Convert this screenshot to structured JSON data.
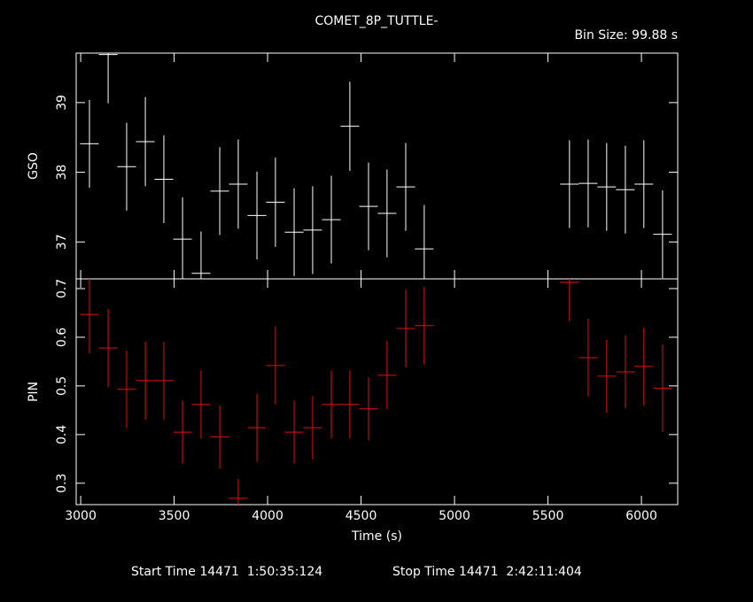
{
  "title": "COMET_8P_TUTTLE-",
  "bin_size": "Bin Size: 99.88 s",
  "footer": {
    "start": "Start Time 14471  1:50:35:124",
    "stop": "Stop Time 14471  2:42:11:404"
  },
  "chart_data": [
    {
      "type": "errorbar",
      "y_label": "GSO",
      "color": "#ffffff",
      "x": [
        3047,
        3147,
        3246,
        3346,
        3445,
        3545,
        3644,
        3744,
        3843,
        3943,
        4042,
        4142,
        4241,
        4341,
        4440,
        4540,
        4639,
        4739,
        4838,
        5615,
        5715,
        5814,
        5914,
        6013,
        6113
      ],
      "x_errors": [
        49.94,
        49.94,
        49.94,
        49.94,
        49.94,
        49.94,
        49.94,
        49.94,
        49.94,
        49.94,
        49.94,
        49.94,
        49.94,
        49.94,
        49.94,
        49.94,
        49.94,
        49.94,
        49.94,
        49.94,
        49.94,
        49.94,
        49.94,
        49.94,
        49.94
      ],
      "values": [
        38.41,
        39.69,
        38.08,
        38.44,
        37.9,
        37.04,
        36.55,
        37.73,
        37.83,
        37.38,
        37.57,
        37.14,
        37.17,
        37.32,
        38.66,
        37.51,
        37.41,
        37.79,
        36.9,
        37.83,
        37.84,
        37.79,
        37.75,
        37.83,
        37.11
      ],
      "errors": [
        0.63,
        0.7,
        0.63,
        0.64,
        0.63,
        0.6,
        0.6,
        0.63,
        0.64,
        0.63,
        0.64,
        0.63,
        0.63,
        0.63,
        0.64,
        0.63,
        0.63,
        0.63,
        0.63,
        0.63,
        0.63,
        0.63,
        0.63,
        0.63,
        0.63
      ],
      "ylim": [
        36.47,
        39.71
      ],
      "yticks": [
        37,
        38,
        39
      ]
    },
    {
      "type": "errorbar",
      "y_label": "PIN",
      "x_label": "Time (s)",
      "color": "#e01010",
      "x": [
        3047,
        3147,
        3246,
        3346,
        3445,
        3545,
        3644,
        3744,
        3843,
        3943,
        4042,
        4142,
        4241,
        4341,
        4440,
        4540,
        4639,
        4739,
        4838,
        5615,
        5715,
        5814,
        5914,
        6013,
        6113
      ],
      "x_errors": [
        49.94,
        49.94,
        49.94,
        49.94,
        49.94,
        49.94,
        49.94,
        49.94,
        49.94,
        49.94,
        49.94,
        49.94,
        49.94,
        49.94,
        49.94,
        49.94,
        49.94,
        49.94,
        49.94,
        49.94,
        49.94,
        49.94,
        49.94,
        49.94,
        49.94
      ],
      "values": [
        0.647,
        0.578,
        0.493,
        0.511,
        0.511,
        0.405,
        0.462,
        0.395,
        0.269,
        0.414,
        0.542,
        0.405,
        0.414,
        0.462,
        0.462,
        0.453,
        0.522,
        0.618,
        0.624,
        0.713,
        0.558,
        0.52,
        0.529,
        0.54,
        0.495
      ],
      "errors": [
        0.08,
        0.08,
        0.08,
        0.08,
        0.08,
        0.065,
        0.07,
        0.065,
        0.04,
        0.07,
        0.08,
        0.065,
        0.065,
        0.07,
        0.07,
        0.065,
        0.07,
        0.08,
        0.08,
        0.08,
        0.08,
        0.075,
        0.075,
        0.08,
        0.09
      ],
      "ylim": [
        0.256,
        0.72
      ],
      "yticks": [
        0.3,
        0.4,
        0.5,
        0.6,
        0.7
      ],
      "xlim": [
        2976,
        6194
      ],
      "xticks": [
        3000,
        3500,
        4000,
        4500,
        5000,
        5500,
        6000
      ]
    }
  ]
}
